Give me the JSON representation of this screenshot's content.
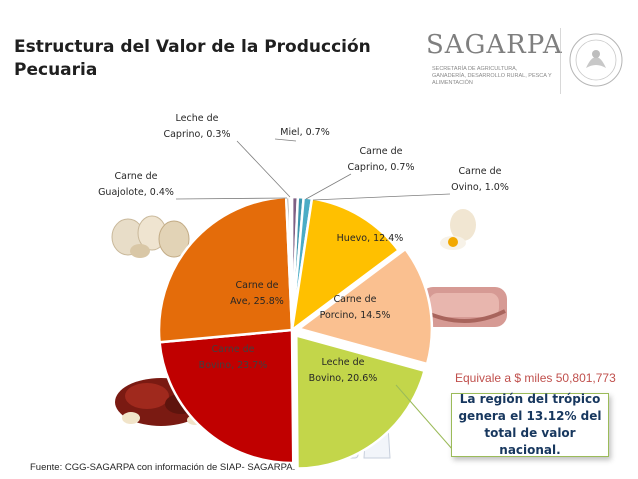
{
  "title": "Estructura del Valor de la Producción Pecuaria",
  "logo": {
    "name": "SAGARPA",
    "subtitle": "Secretaría de Agricultura, Ganadería, Desarrollo Rural, Pesca y Alimentación"
  },
  "equivale": "Equivale a $ miles 50,801,773",
  "callout": "La región del trópico genera el 13.12% del total de valor nacional.",
  "source": "Fuente: CGG-SAGARPA con información de SIAP- SAGARPA.",
  "chart_data": {
    "type": "pie",
    "title": "",
    "start": "top",
    "direction": "clockwise",
    "slices": [
      {
        "label": [
          "Miel, 0.7%"
        ],
        "value": 0.7,
        "color": "#7f6084"
      },
      {
        "label": [
          "Carne de",
          "Caprino, 0.7%"
        ],
        "value": 0.7,
        "color": "#3d96ae"
      },
      {
        "label": [
          "Carne de",
          "Ovino, 1.0%"
        ],
        "value": 1.0,
        "color": "#4bacc6"
      },
      {
        "label": [
          "Huevo, 12.4%"
        ],
        "value": 12.4,
        "color": "#ffc000"
      },
      {
        "label": [
          "Carne de",
          "Porcino, 14.5%"
        ],
        "value": 14.5,
        "color": "#fac090"
      },
      {
        "label": [
          "Leche de",
          "Bovino, 20.6%"
        ],
        "value": 20.6,
        "color": "#c3d64a"
      },
      {
        "label": [
          "Carne de",
          "Bovino, 23.7%"
        ],
        "value": 23.7,
        "color": "#c00000"
      },
      {
        "label": [
          "Carne de",
          "Ave, 25.8%"
        ],
        "value": 25.8,
        "color": "#e46c0a"
      },
      {
        "label": [
          "Carne de",
          "Guajolote, 0.4%"
        ],
        "value": 0.4,
        "color": "#8c8c8c"
      },
      {
        "label": [
          "Leche de",
          "Caprino, 0.3%"
        ],
        "value": 0.3,
        "color": "#4f3a1a"
      }
    ]
  }
}
